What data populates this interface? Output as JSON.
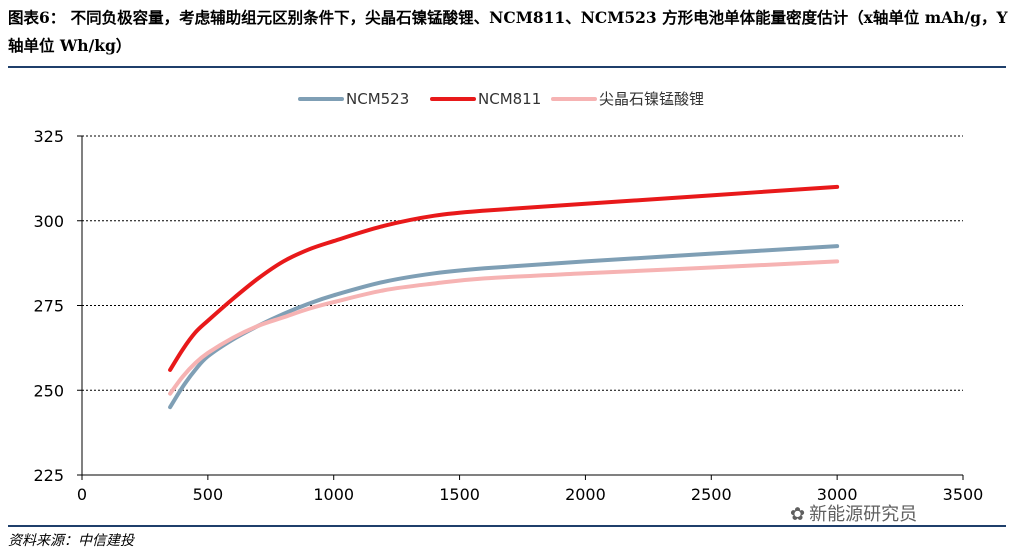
{
  "title": "图表6： 不同负极容量，考虑辅助组元区别条件下，尖晶石镍锰酸锂、NCM811、NCM523 方形电池单体能量密度估计（x轴单位 mAh/g，Y 轴单位 Wh/kg）",
  "source": "资料来源：中信建投",
  "watermark": "新能源研究员",
  "chart_data": {
    "type": "line",
    "title": "",
    "xlabel": "",
    "ylabel": "",
    "xlim": [
      0,
      3500
    ],
    "ylim": [
      225,
      325
    ],
    "xticks": [
      0,
      500,
      1000,
      1500,
      2000,
      2500,
      3000,
      3500
    ],
    "yticks": [
      225,
      250,
      275,
      300,
      325
    ],
    "grid": "horizontal-dashed",
    "legend_position": "top",
    "series": [
      {
        "name": "NCM523",
        "color": "#7f9fb5",
        "x": [
          350,
          400,
          450,
          500,
          600,
          700,
          800,
          900,
          1000,
          1200,
          1400,
          1600,
          2000,
          2500,
          3000
        ],
        "y": [
          245,
          251,
          256,
          260,
          265,
          269,
          272.5,
          275.5,
          278,
          282,
          284.5,
          286,
          288,
          290.3,
          292.5
        ]
      },
      {
        "name": "NCM811",
        "color": "#e8191a",
        "x": [
          350,
          400,
          450,
          500,
          600,
          700,
          800,
          900,
          1000,
          1200,
          1400,
          1600,
          2000,
          2500,
          3000
        ],
        "y": [
          256,
          262,
          267,
          270.5,
          277,
          283,
          288,
          291.5,
          294,
          298.5,
          301.5,
          303,
          305,
          307.5,
          310
        ]
      },
      {
        "name": "尖晶石镍锰酸锂",
        "color": "#f6b3b3",
        "x": [
          350,
          400,
          450,
          500,
          600,
          700,
          800,
          900,
          1000,
          1200,
          1400,
          1600,
          2000,
          2500,
          3000
        ],
        "y": [
          249,
          254,
          258,
          261,
          265.5,
          269,
          271.5,
          274,
          276,
          279.5,
          281.5,
          283,
          284.5,
          286.2,
          288
        ]
      }
    ]
  }
}
